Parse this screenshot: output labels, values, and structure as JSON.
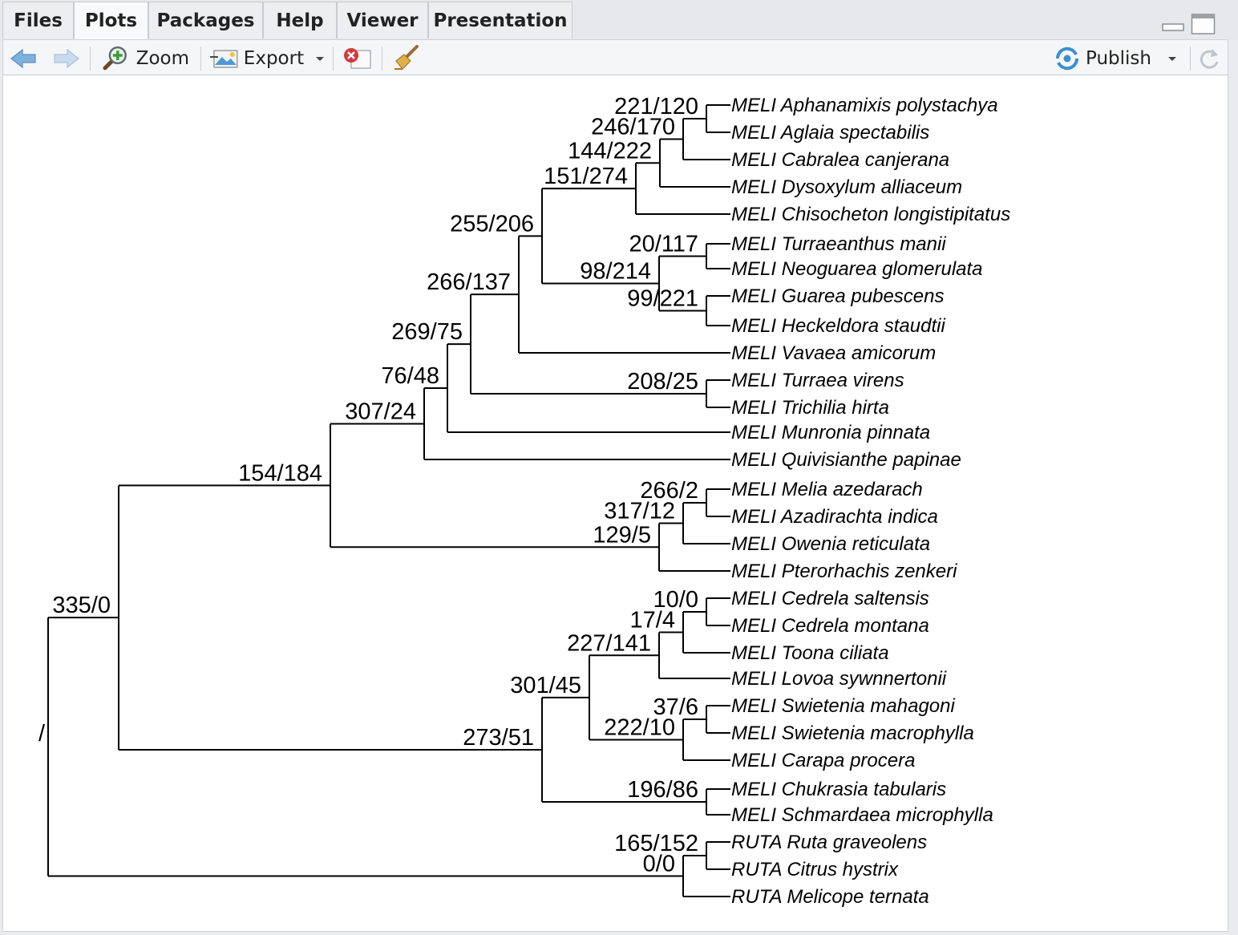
{
  "tabs": [
    {
      "label": "Files",
      "active": false
    },
    {
      "label": "Plots",
      "active": true
    },
    {
      "label": "Packages",
      "active": false
    },
    {
      "label": "Help",
      "active": false
    },
    {
      "label": "Viewer",
      "active": false
    },
    {
      "label": "Presentation",
      "active": false
    }
  ],
  "toolbar": {
    "zoom_label": "Zoom",
    "export_label": "Export",
    "publish_label": "Publish",
    "icons": [
      "back-arrow-icon",
      "forward-arrow-icon",
      "zoom-icon",
      "export-icon",
      "remove-plot-icon",
      "clear-all-icon",
      "publish-icon",
      "refresh-icon"
    ]
  },
  "window_controls": [
    "minimize-icon",
    "maximize-icon"
  ],
  "tree": {
    "root_label": "/",
    "tips": [
      "MELI Aphanamixis polystachya",
      "MELI Aglaia spectabilis",
      "MELI Cabralea canjerana",
      "MELI Dysoxylum alliaceum",
      "MELI Chisocheton longistipitatus",
      "MELI Turraeanthus manii",
      "MELI Neoguarea glomerulata",
      "MELI Guarea pubescens",
      "MELI Heckeldora staudtii",
      "MELI Vavaea amicorum",
      "MELI Turraea virens",
      "MELI Trichilia hirta",
      "MELI Munronia pinnata",
      "MELI Quivisianthe papinae",
      "MELI Melia azedarach",
      "MELI Azadirachta indica",
      "MELI Owenia reticulata",
      "MELI Pterorhachis zenkeri",
      "MELI Cedrela saltensis",
      "MELI Cedrela montana",
      "MELI Toona ciliata",
      "MELI Lovoa sywnnertonii",
      "MELI Swietenia mahagoni",
      "MELI Swietenia macrophylla",
      "MELI Carapa procera",
      "MELI Chukrasia tabularis",
      "MELI Schmardaea microphylla",
      "RUTA Ruta graveolens",
      "RUTA Citrus hystrix",
      "RUTA Melicope ternata"
    ],
    "nodes": [
      {
        "id": "n1",
        "label": "221/120",
        "parent": "n2",
        "children": [
          0,
          1
        ]
      },
      {
        "id": "n2",
        "label": "246/170",
        "parent": "n3",
        "children": [
          "n1",
          2
        ]
      },
      {
        "id": "n3",
        "label": "144/222",
        "parent": "n4",
        "children": [
          "n2",
          3
        ]
      },
      {
        "id": "n4",
        "label": "151/274",
        "parent": "n5",
        "children": [
          "n3",
          4
        ]
      },
      {
        "id": "n5",
        "label": "255/206",
        "parent": "n8",
        "children": [
          "n4",
          "n7"
        ]
      },
      {
        "id": "n6",
        "label": "20/117",
        "parent": "n7",
        "children": [
          5,
          6
        ]
      },
      {
        "id": "n7",
        "label": "98/214",
        "parent": "n5",
        "children": [
          "n6",
          "n7b"
        ]
      },
      {
        "id": "n7b",
        "label": "99/221",
        "parent": "n7",
        "children": [
          7,
          8
        ]
      },
      {
        "id": "n8",
        "label": "266/137",
        "parent": "n9",
        "children": [
          "n5",
          9
        ]
      },
      {
        "id": "n9",
        "label": "269/75",
        "parent": "n10",
        "children": [
          "n8",
          "n9b"
        ]
      },
      {
        "id": "n9b",
        "label": "208/25",
        "parent": "n9",
        "children": [
          10,
          11
        ]
      },
      {
        "id": "n10",
        "label": "76/48",
        "parent": "n11",
        "children": [
          "n9",
          12
        ]
      },
      {
        "id": "n11",
        "label": "307/24",
        "parent": "n12",
        "children": [
          "n10",
          13
        ]
      },
      {
        "id": "n12",
        "label": "154/184",
        "parent": "n13",
        "children": [
          "n11",
          "n14"
        ]
      },
      {
        "id": "n14a",
        "label": "266/2",
        "parent": "n14b",
        "children": [
          14,
          15
        ]
      },
      {
        "id": "n14b",
        "label": "317/12",
        "parent": "n14",
        "children": [
          "n14a",
          16
        ]
      },
      {
        "id": "n14",
        "label": "129/5",
        "parent": "n12",
        "children": [
          "n14b",
          17
        ]
      },
      {
        "id": "n13",
        "label": "335/0",
        "parent": "root",
        "children": [
          "n12",
          "n15"
        ]
      },
      {
        "id": "n16a",
        "label": "10/0",
        "parent": "n16b",
        "children": [
          18,
          19
        ]
      },
      {
        "id": "n16b",
        "label": "17/4",
        "parent": "n16",
        "children": [
          "n16a",
          20
        ]
      },
      {
        "id": "n16",
        "label": "227/141",
        "parent": "n17",
        "children": [
          "n16b",
          21
        ]
      },
      {
        "id": "n18a",
        "label": "37/6",
        "parent": "n18",
        "children": [
          22,
          23
        ]
      },
      {
        "id": "n18",
        "label": "222/10",
        "parent": "n17",
        "children": [
          "n18a",
          24
        ]
      },
      {
        "id": "n17",
        "label": "301/45",
        "parent": "n15",
        "children": [
          "n16",
          "n18"
        ]
      },
      {
        "id": "n19",
        "label": "196/86",
        "parent": "n15",
        "children": [
          25,
          26
        ]
      },
      {
        "id": "n15",
        "label": "273/51",
        "parent": "n13",
        "children": [
          "n17",
          "n19"
        ]
      },
      {
        "id": "n20a",
        "label": "165/152",
        "parent": "n20",
        "children": [
          27,
          28
        ]
      },
      {
        "id": "n20",
        "label": "0/0",
        "parent": "root",
        "children": [
          "n20a",
          29
        ]
      }
    ]
  }
}
